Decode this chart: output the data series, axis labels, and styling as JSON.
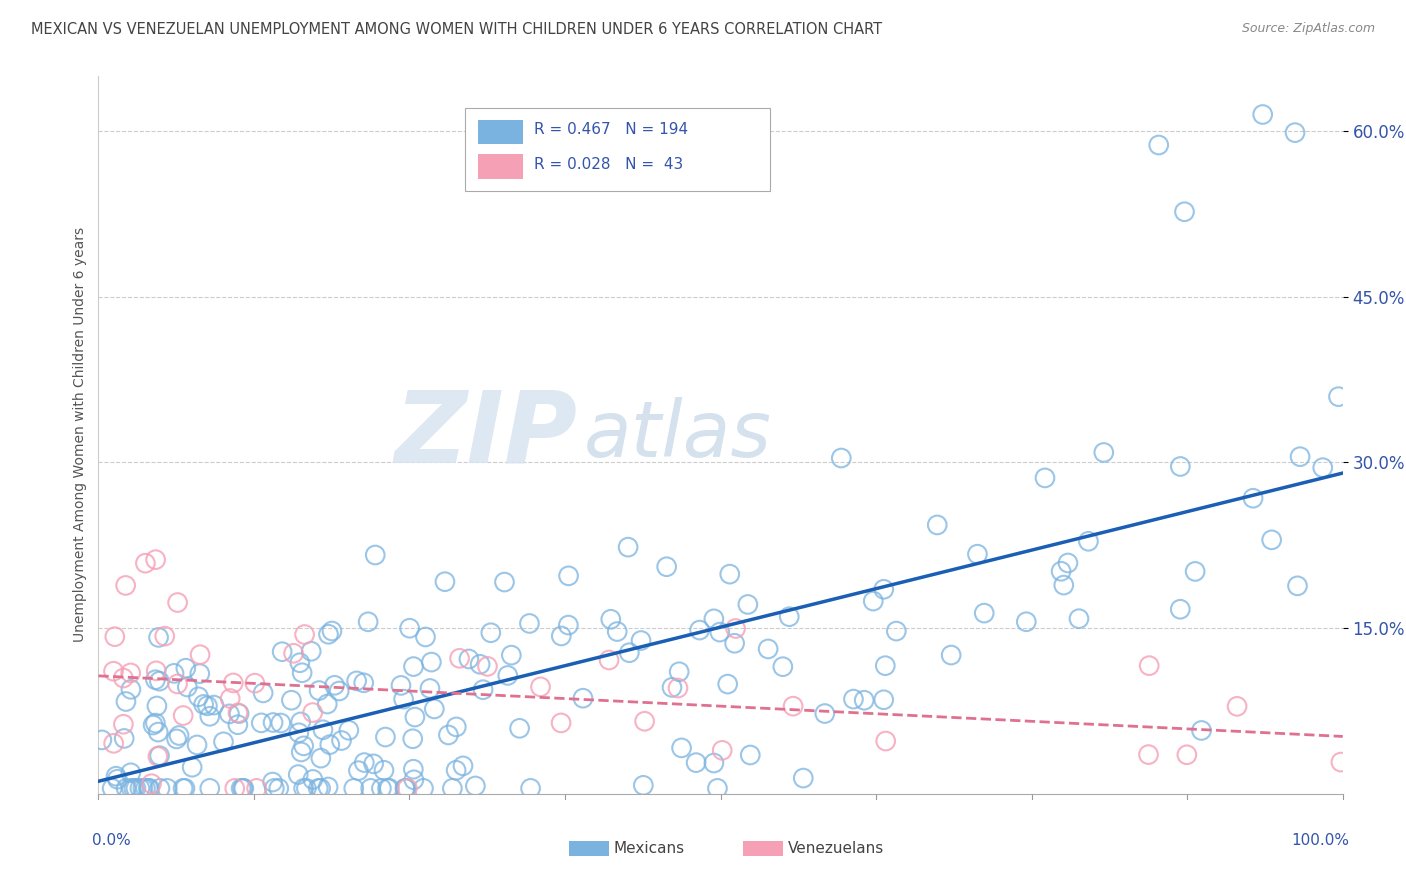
{
  "title": "MEXICAN VS VENEZUELAN UNEMPLOYMENT AMONG WOMEN WITH CHILDREN UNDER 6 YEARS CORRELATION CHART",
  "source": "Source: ZipAtlas.com",
  "ylabel": "Unemployment Among Women with Children Under 6 years",
  "watermark_zip": "ZIP",
  "watermark_atlas": "atlas",
  "mexican_color": "#7ab3e0",
  "venezuelan_color": "#f5a0b5",
  "mexican_line_color": "#1a5fb4",
  "venezuelan_line_color": "#e07090",
  "background_color": "#ffffff",
  "grid_color": "#cccccc",
  "title_color": "#444444",
  "axis_label_color": "#3355aa",
  "ytick_color": "#3355aa",
  "seed": 12
}
